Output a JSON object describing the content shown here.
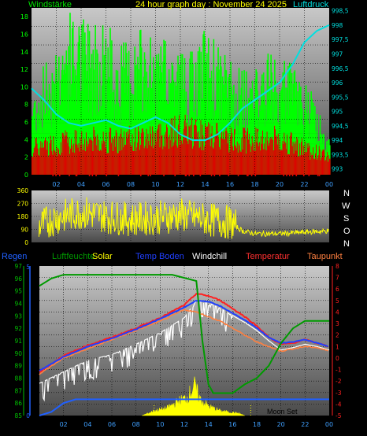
{
  "colors": {
    "wind": "#00e000",
    "gust": "#00ff00",
    "windRed": "#e00000",
    "pressure": "#00e0e0",
    "windDir": "#ffff00",
    "regen": "#2060ff",
    "humidity": "#009a00",
    "solar": "#ffff00",
    "tempBoden": "#2040ff",
    "windchill": "#ffffff",
    "temperature": "#ff2020",
    "dewpoint": "#ff8040",
    "axisRight3": "#ff2020",
    "axisLeftHum": "#00c000",
    "grid": "#000000"
  },
  "header": {
    "windstaerke": "Windstärke",
    "title": "24 hour graph day : November 24 2025",
    "luftdruck": "Luftdruck"
  },
  "legend3": {
    "regen": "Regen",
    "luftfeuchte": "Luftfeuchte",
    "solar": "Solar",
    "tempBoden": "Temp Boden",
    "windchill": "Windchill",
    "temperatur": "Temperatur",
    "taupunkt": "Taupunkt"
  },
  "directions": [
    "N",
    "W",
    "S",
    "O",
    "N"
  ],
  "moonset": "Moon Set",
  "chart_data": [
    {
      "type": "bar",
      "x_ticks": [
        "02",
        "04",
        "06",
        "08",
        "10",
        "12",
        "14",
        "16",
        "18",
        "20",
        "22",
        "00"
      ],
      "y_left_ticks": [
        "0",
        "2",
        "4",
        "6",
        "8",
        "10",
        "12",
        "14",
        "16",
        "18"
      ],
      "y_left_range": [
        0,
        19
      ],
      "y_right_ticks": [
        "993",
        "993,5",
        "994",
        "994,5",
        "995",
        "995,5",
        "996",
        "996,5",
        "997",
        "997,5",
        "998",
        "998,5"
      ],
      "y_right_range": [
        992.8,
        998.6
      ],
      "pressure_points": [
        [
          0,
          995.8
        ],
        [
          1,
          995.4
        ],
        [
          2,
          994.9
        ],
        [
          3,
          994.6
        ],
        [
          4,
          994.5
        ],
        [
          5,
          994.6
        ],
        [
          6,
          994.7
        ],
        [
          7,
          994.5
        ],
        [
          8,
          994.4
        ],
        [
          9,
          994.6
        ],
        [
          10,
          994.8
        ],
        [
          11,
          994.6
        ],
        [
          12,
          994.2
        ],
        [
          13,
          994.0
        ],
        [
          14,
          994.0
        ],
        [
          15,
          994.2
        ],
        [
          16,
          994.6
        ],
        [
          17,
          995.1
        ],
        [
          18,
          995.4
        ],
        [
          19,
          995.7
        ],
        [
          20,
          996.0
        ],
        [
          21,
          996.6
        ],
        [
          22,
          997.4
        ],
        [
          23,
          997.8
        ],
        [
          24,
          998.0
        ]
      ],
      "wind_envelope": [
        [
          0,
          7
        ],
        [
          2,
          12
        ],
        [
          3,
          15
        ],
        [
          4,
          14
        ],
        [
          5,
          14
        ],
        [
          6,
          12
        ],
        [
          7,
          10
        ],
        [
          8,
          10
        ],
        [
          9,
          12
        ],
        [
          10,
          11
        ],
        [
          11,
          12
        ],
        [
          12,
          10
        ],
        [
          13,
          11
        ],
        [
          14,
          12
        ],
        [
          15,
          12
        ],
        [
          16,
          10
        ],
        [
          17,
          9
        ],
        [
          18,
          9
        ],
        [
          19,
          11
        ],
        [
          20,
          10
        ],
        [
          21,
          10
        ],
        [
          22,
          8
        ],
        [
          23,
          6
        ],
        [
          24,
          3
        ]
      ],
      "gust_envelope": [
        [
          0,
          10
        ],
        [
          2,
          16
        ],
        [
          3,
          19
        ],
        [
          4,
          18
        ],
        [
          5,
          19
        ],
        [
          6,
          18
        ],
        [
          7,
          15
        ],
        [
          8,
          16
        ],
        [
          9,
          17
        ],
        [
          10,
          15
        ],
        [
          11,
          16
        ],
        [
          12,
          15
        ],
        [
          13,
          14
        ],
        [
          14,
          17
        ],
        [
          15,
          15
        ],
        [
          16,
          13
        ],
        [
          17,
          12
        ],
        [
          18,
          12
        ],
        [
          19,
          14
        ],
        [
          20,
          13
        ],
        [
          21,
          13
        ],
        [
          22,
          11
        ],
        [
          23,
          8
        ],
        [
          24,
          4
        ]
      ],
      "wind_red": [
        [
          0,
          3
        ],
        [
          4,
          4
        ],
        [
          8,
          4
        ],
        [
          12,
          5
        ],
        [
          16,
          4
        ],
        [
          20,
          4
        ],
        [
          24,
          2
        ]
      ]
    },
    {
      "type": "scatter",
      "y_ticks": [
        "360",
        "270",
        "180",
        "90",
        "0"
      ],
      "y_range": [
        0,
        360
      ],
      "direction_points": [
        [
          0,
          90
        ],
        [
          2,
          170
        ],
        [
          4,
          210
        ],
        [
          6,
          180
        ],
        [
          8,
          160
        ],
        [
          10,
          170
        ],
        [
          12,
          190
        ],
        [
          14,
          160
        ],
        [
          16,
          140
        ],
        [
          17,
          80
        ],
        [
          18,
          60
        ],
        [
          20,
          60
        ],
        [
          22,
          70
        ],
        [
          24,
          80
        ]
      ]
    },
    {
      "type": "line",
      "y_left_hum_ticks": [
        "85",
        "86",
        "87",
        "88",
        "89",
        "90",
        "91",
        "92",
        "93",
        "94",
        "95",
        "96",
        "97"
      ],
      "y_left_hum_range": [
        85,
        97
      ],
      "y_right_ticks": [
        "-5",
        "-4",
        "-3",
        "-2",
        "-1",
        "0",
        "1",
        "2",
        "3",
        "4",
        "5",
        "6",
        "7",
        "8"
      ],
      "y_right_range": [
        -5,
        8
      ],
      "temperature": [
        [
          0,
          -1.2
        ],
        [
          2,
          0.2
        ],
        [
          4,
          1.1
        ],
        [
          6,
          1.8
        ],
        [
          8,
          2.6
        ],
        [
          10,
          3.5
        ],
        [
          12,
          4.6
        ],
        [
          13,
          5.6
        ],
        [
          14,
          5.4
        ],
        [
          15,
          5.0
        ],
        [
          16,
          4.3
        ],
        [
          17,
          3.6
        ],
        [
          18,
          2.8
        ],
        [
          19,
          1.8
        ],
        [
          20,
          1.2
        ],
        [
          21,
          1.3
        ],
        [
          22,
          1.6
        ],
        [
          23,
          1.3
        ],
        [
          24,
          1.0
        ]
      ],
      "dewpoint": [
        [
          0,
          -1.4
        ],
        [
          2,
          0.0
        ],
        [
          4,
          0.8
        ],
        [
          6,
          1.6
        ],
        [
          8,
          2.4
        ],
        [
          10,
          3.2
        ],
        [
          12,
          4.2
        ],
        [
          13,
          4.0
        ],
        [
          14,
          3.6
        ],
        [
          15,
          3.2
        ],
        [
          16,
          2.6
        ],
        [
          17,
          2.0
        ],
        [
          18,
          1.4
        ],
        [
          19,
          1.0
        ],
        [
          20,
          0.6
        ],
        [
          21,
          0.8
        ],
        [
          22,
          1.0
        ],
        [
          23,
          0.9
        ],
        [
          24,
          0.6
        ]
      ],
      "tempBoden": [
        [
          0,
          -1.1
        ],
        [
          2,
          0.1
        ],
        [
          4,
          1.0
        ],
        [
          6,
          1.7
        ],
        [
          8,
          2.5
        ],
        [
          10,
          3.4
        ],
        [
          12,
          4.4
        ],
        [
          13,
          5.0
        ],
        [
          14,
          4.9
        ],
        [
          15,
          4.5
        ],
        [
          16,
          3.9
        ],
        [
          17,
          3.3
        ],
        [
          18,
          2.6
        ],
        [
          19,
          1.8
        ],
        [
          20,
          1.3
        ],
        [
          21,
          1.4
        ],
        [
          22,
          1.6
        ],
        [
          23,
          1.3
        ],
        [
          24,
          1.0
        ]
      ],
      "windchill": [
        [
          0,
          -2.2
        ],
        [
          2,
          -1.2
        ],
        [
          4,
          -0.2
        ],
        [
          6,
          0.3
        ],
        [
          8,
          1.2
        ],
        [
          10,
          2.2
        ],
        [
          12,
          3.5
        ],
        [
          13,
          5.0
        ],
        [
          14,
          4.8
        ],
        [
          15,
          4.3
        ],
        [
          16,
          3.7
        ],
        [
          17,
          3.1
        ],
        [
          18,
          2.4
        ],
        [
          19,
          1.5
        ],
        [
          20,
          0.7
        ],
        [
          21,
          0.9
        ],
        [
          22,
          1.2
        ],
        [
          23,
          1.0
        ],
        [
          24,
          0.7
        ]
      ],
      "humidity": [
        [
          0,
          95.4
        ],
        [
          1,
          96
        ],
        [
          2,
          96.3
        ],
        [
          3,
          96.3
        ],
        [
          11,
          96.3
        ],
        [
          13,
          95.8
        ],
        [
          13.5,
          91
        ],
        [
          14,
          87.5
        ],
        [
          14.4,
          86.8
        ],
        [
          16,
          86.8
        ],
        [
          17,
          87.5
        ],
        [
          18,
          88
        ],
        [
          19,
          89
        ],
        [
          20,
          90.8
        ],
        [
          21,
          92
        ],
        [
          22,
          92.6
        ],
        [
          24,
          92.6
        ]
      ],
      "regen_level": [
        [
          0,
          85
        ],
        [
          1,
          85.3
        ],
        [
          2,
          86
        ],
        [
          3,
          86.3
        ],
        [
          24,
          86.3
        ]
      ],
      "solar": [
        [
          8.5,
          0
        ],
        [
          9.5,
          0.4
        ],
        [
          10.5,
          0.6
        ],
        [
          11.5,
          1.2
        ],
        [
          12.3,
          1.6
        ],
        [
          12.8,
          2.6
        ],
        [
          13.3,
          1.4
        ],
        [
          14,
          0.8
        ],
        [
          15,
          0.4
        ],
        [
          16.5,
          0.2
        ],
        [
          17,
          0
        ]
      ]
    }
  ]
}
